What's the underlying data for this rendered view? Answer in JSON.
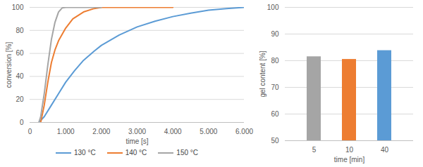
{
  "chart_data": [
    {
      "type": "line",
      "x_label": "time [s]",
      "y_label": "conversion [%]",
      "xlim": [
        0,
        6000
      ],
      "xticks": [
        0,
        {
          "value": 1000,
          "label": "1.000"
        },
        {
          "value": 2000,
          "label": "2.000"
        },
        {
          "value": 3000,
          "label": "3.000"
        },
        {
          "value": 4000,
          "label": "4.000"
        },
        {
          "value": 5000,
          "label": "5.000"
        },
        {
          "value": 6000,
          "label": "6.000"
        }
      ],
      "ylim": [
        0,
        100
      ],
      "yticks": [
        0,
        20,
        40,
        60,
        80,
        100
      ],
      "grid": true,
      "legend": "bottom",
      "series": [
        {
          "name": "130 °C",
          "color": "#5b9bd5",
          "x": [
            250,
            400,
            600,
            800,
            1000,
            1250,
            1500,
            1800,
            2000,
            2500,
            3000,
            3500,
            4000,
            4500,
            5000,
            5500,
            6000
          ],
          "values": [
            0,
            5,
            15,
            25,
            35,
            45,
            54,
            62,
            67,
            76,
            83,
            88,
            92,
            95,
            97.5,
            99,
            100
          ]
        },
        {
          "name": "140 °C",
          "color": "#ed7d31",
          "x": [
            300,
            400,
            500,
            600,
            700,
            800,
            1000,
            1200,
            1500,
            1800,
            2000,
            2500,
            3000,
            4000
          ],
          "values": [
            0,
            15,
            35,
            52,
            63,
            71,
            82,
            90,
            96,
            99,
            100,
            100,
            100,
            100
          ]
        },
        {
          "name": "150 °C",
          "color": "#a5a5a5",
          "x": [
            250,
            300,
            400,
            500,
            600,
            700,
            800,
            900,
            1000,
            1200,
            1500,
            2000
          ],
          "values": [
            0,
            5,
            25,
            50,
            72,
            87,
            96,
            99.5,
            100,
            100,
            100,
            100
          ]
        }
      ]
    },
    {
      "type": "bar",
      "x_label": "time [min]",
      "y_label": "gel content [%]",
      "categories": [
        "5",
        "10",
        "40"
      ],
      "values": [
        81.5,
        80.5,
        83.8
      ],
      "colors": [
        "#a5a5a5",
        "#ed7d31",
        "#5b9bd5"
      ],
      "ylim": [
        50,
        100
      ],
      "yticks": [
        50,
        60,
        70,
        80,
        90,
        100
      ],
      "grid": true
    }
  ]
}
